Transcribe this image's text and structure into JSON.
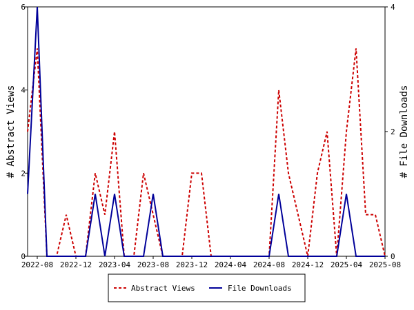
{
  "chart_data": {
    "type": "line",
    "x_tick_labels": [
      "2022-08",
      "2022-12",
      "2023-04",
      "2023-08",
      "2023-12",
      "2024-04",
      "2024-08",
      "2024-12",
      "2025-04",
      "2025-08"
    ],
    "x": [
      "2022-07",
      "2022-08",
      "2022-09",
      "2022-10",
      "2022-11",
      "2022-12",
      "2023-01",
      "2023-02",
      "2023-03",
      "2023-04",
      "2023-05",
      "2023-06",
      "2023-07",
      "2023-08",
      "2023-09",
      "2023-10",
      "2023-11",
      "2023-12",
      "2024-01",
      "2024-02",
      "2024-03",
      "2024-04",
      "2024-05",
      "2024-06",
      "2024-07",
      "2024-08",
      "2024-09",
      "2024-10",
      "2024-11",
      "2024-12",
      "2025-01",
      "2025-02",
      "2025-03",
      "2025-04",
      "2025-05",
      "2025-06",
      "2025-07",
      "2025-08"
    ],
    "series": [
      {
        "name": "Abstract Views",
        "axis": "left",
        "color": "#cc0000",
        "style": "dashed",
        "values": [
          3,
          5,
          0,
          0,
          1,
          0,
          0,
          2,
          1,
          3,
          0,
          0,
          2,
          1,
          0,
          0,
          0,
          2,
          2,
          0,
          0,
          0,
          0,
          0,
          0,
          0,
          4,
          2,
          1,
          0,
          2,
          3,
          0,
          3,
          5,
          1,
          1,
          0
        ]
      },
      {
        "name": "File Downloads",
        "axis": "right",
        "color": "#000099",
        "style": "solid",
        "values": [
          1,
          4,
          0,
          0,
          0,
          0,
          0,
          1,
          0,
          1,
          0,
          0,
          0,
          1,
          0,
          0,
          0,
          0,
          0,
          0,
          0,
          0,
          0,
          0,
          0,
          0,
          1,
          0,
          0,
          0,
          0,
          0,
          0,
          1,
          0,
          0,
          0,
          0
        ]
      }
    ],
    "ylabel_left": "# Abstract Views",
    "ylabel_right": "# File Downloads",
    "ylim_left": [
      0,
      6
    ],
    "yticks_left": [
      "0",
      "2",
      "4",
      "6"
    ],
    "ylim_right": [
      0,
      4
    ],
    "yticks_right": [
      "0",
      "2",
      "4"
    ],
    "legend_position": "bottom",
    "grid": false
  }
}
